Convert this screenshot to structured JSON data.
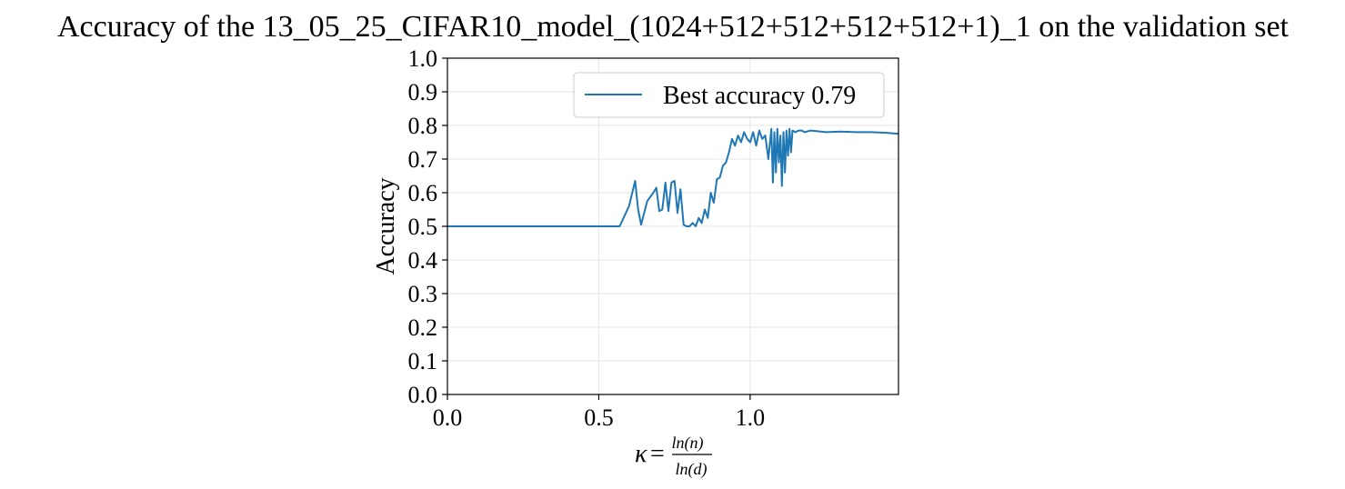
{
  "chart_data": {
    "type": "line",
    "title": "Accuracy of the 13_05_25_CIFAR10_model_(1024+512+512+512+512+1)_1 on the validation set",
    "ylabel": "Accuracy",
    "xlabel": {
      "symbol": "κ",
      "equals": "=",
      "numerator": "ln(n)",
      "denominator": "ln(d)"
    },
    "xlim": [
      0.0,
      1.49
    ],
    "ylim": [
      0.0,
      1.0
    ],
    "x_ticks": [
      "0.0",
      "0.5",
      "1.0"
    ],
    "x_tick_values": [
      0.0,
      0.5,
      1.0
    ],
    "y_ticks": [
      "0.0",
      "0.1",
      "0.2",
      "0.3",
      "0.4",
      "0.5",
      "0.6",
      "0.7",
      "0.8",
      "0.9",
      "1.0"
    ],
    "y_tick_values": [
      0.0,
      0.1,
      0.2,
      0.3,
      0.4,
      0.5,
      0.6,
      0.7,
      0.8,
      0.9,
      1.0
    ],
    "grid": true,
    "legend_position": "upper-right",
    "line_color": "#1f77b4",
    "series": [
      {
        "name": "Best accuracy 0.79",
        "x": [
          0.0,
          0.569,
          0.6,
          0.62,
          0.63,
          0.64,
          0.66,
          0.68,
          0.69,
          0.7,
          0.71,
          0.72,
          0.73,
          0.74,
          0.75,
          0.76,
          0.77,
          0.78,
          0.79,
          0.8,
          0.81,
          0.82,
          0.83,
          0.84,
          0.85,
          0.86,
          0.87,
          0.88,
          0.89,
          0.9,
          0.91,
          0.92,
          0.93,
          0.94,
          0.95,
          0.96,
          0.97,
          0.98,
          0.99,
          1.0,
          1.01,
          1.02,
          1.03,
          1.04,
          1.05,
          1.06,
          1.07,
          1.075,
          1.08,
          1.085,
          1.09,
          1.095,
          1.1,
          1.105,
          1.11,
          1.115,
          1.12,
          1.125,
          1.13,
          1.135,
          1.14,
          1.15,
          1.16,
          1.17,
          1.18,
          1.2,
          1.25,
          1.3,
          1.35,
          1.4,
          1.45,
          1.49
        ],
        "y": [
          0.5,
          0.5,
          0.56,
          0.635,
          0.55,
          0.505,
          0.575,
          0.6,
          0.615,
          0.545,
          0.55,
          0.63,
          0.545,
          0.63,
          0.635,
          0.54,
          0.61,
          0.505,
          0.5,
          0.5,
          0.51,
          0.5,
          0.525,
          0.51,
          0.55,
          0.525,
          0.6,
          0.57,
          0.64,
          0.645,
          0.68,
          0.69,
          0.72,
          0.76,
          0.74,
          0.77,
          0.75,
          0.78,
          0.76,
          0.75,
          0.78,
          0.74,
          0.785,
          0.76,
          0.77,
          0.7,
          0.79,
          0.63,
          0.78,
          0.66,
          0.79,
          0.69,
          0.77,
          0.62,
          0.78,
          0.66,
          0.785,
          0.71,
          0.79,
          0.72,
          0.785,
          0.78,
          0.785,
          0.785,
          0.78,
          0.785,
          0.78,
          0.782,
          0.78,
          0.78,
          0.778,
          0.775
        ]
      }
    ]
  }
}
